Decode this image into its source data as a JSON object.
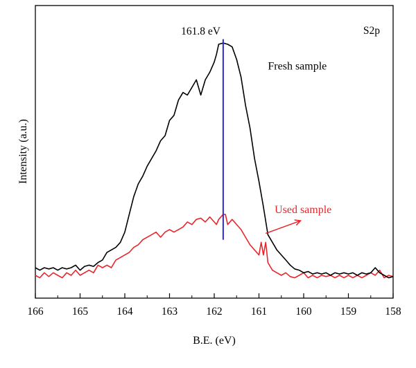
{
  "chart_data": {
    "type": "line",
    "title": "",
    "panel_label": "S2p",
    "xlabel": "B.E. (eV)",
    "ylabel": "Intensity (a.u.)",
    "xlim": [
      166,
      158
    ],
    "x_reversed": true,
    "ylim": [
      0,
      100
    ],
    "y_ticks_shown": false,
    "grid": false,
    "x_ticks": [
      166,
      165,
      164,
      163,
      162,
      161,
      160,
      159,
      158
    ],
    "x_tick_labels": [
      "166",
      "165",
      "164",
      "163",
      "162",
      "161",
      "160",
      "159",
      "158"
    ],
    "series": [
      {
        "name": "Fresh sample",
        "color": "#000000",
        "points": [
          [
            166.0,
            12.0
          ],
          [
            165.9,
            11.0
          ],
          [
            165.8,
            12.0
          ],
          [
            165.7,
            11.5
          ],
          [
            165.6,
            12.0
          ],
          [
            165.5,
            11.0
          ],
          [
            165.4,
            12.0
          ],
          [
            165.3,
            11.5
          ],
          [
            165.2,
            12.0
          ],
          [
            165.1,
            13.0
          ],
          [
            165.0,
            11.0
          ],
          [
            164.9,
            12.5
          ],
          [
            164.8,
            13.0
          ],
          [
            164.7,
            12.5
          ],
          [
            164.6,
            14.0
          ],
          [
            164.5,
            15.0
          ],
          [
            164.4,
            18.0
          ],
          [
            164.3,
            19.0
          ],
          [
            164.2,
            20.0
          ],
          [
            164.1,
            22.0
          ],
          [
            164.0,
            26.0
          ],
          [
            163.9,
            33.0
          ],
          [
            163.8,
            40.0
          ],
          [
            163.7,
            45.0
          ],
          [
            163.6,
            48.0
          ],
          [
            163.5,
            52.0
          ],
          [
            163.4,
            55.0
          ],
          [
            163.3,
            58.0
          ],
          [
            163.2,
            62.0
          ],
          [
            163.1,
            64.0
          ],
          [
            163.0,
            70.0
          ],
          [
            162.9,
            72.0
          ],
          [
            162.8,
            78.0
          ],
          [
            162.7,
            81.0
          ],
          [
            162.6,
            80.0
          ],
          [
            162.5,
            83.0
          ],
          [
            162.4,
            86.0
          ],
          [
            162.3,
            80.0
          ],
          [
            162.2,
            86.0
          ],
          [
            162.1,
            89.0
          ],
          [
            162.0,
            93.0
          ],
          [
            161.95,
            96.0
          ],
          [
            161.9,
            100.0
          ],
          [
            161.8,
            100.5
          ],
          [
            161.7,
            100.0
          ],
          [
            161.6,
            99.0
          ],
          [
            161.5,
            94.0
          ],
          [
            161.4,
            87.0
          ],
          [
            161.3,
            76.0
          ],
          [
            161.2,
            67.0
          ],
          [
            161.1,
            55.0
          ],
          [
            161.0,
            46.0
          ],
          [
            160.9,
            36.0
          ],
          [
            160.8,
            25.0
          ],
          [
            160.7,
            22.0
          ],
          [
            160.6,
            19.0
          ],
          [
            160.5,
            17.0
          ],
          [
            160.4,
            15.0
          ],
          [
            160.3,
            13.0
          ],
          [
            160.2,
            11.5
          ],
          [
            160.1,
            11.0
          ],
          [
            160.0,
            10.0
          ],
          [
            159.9,
            10.5
          ],
          [
            159.8,
            9.5
          ],
          [
            159.7,
            10.0
          ],
          [
            159.6,
            9.5
          ],
          [
            159.5,
            10.0
          ],
          [
            159.4,
            9.0
          ],
          [
            159.3,
            10.0
          ],
          [
            159.2,
            9.5
          ],
          [
            159.1,
            10.0
          ],
          [
            159.0,
            9.5
          ],
          [
            158.9,
            10.0
          ],
          [
            158.8,
            9.0
          ],
          [
            158.7,
            10.0
          ],
          [
            158.6,
            9.5
          ],
          [
            158.5,
            10.0
          ],
          [
            158.4,
            12.0
          ],
          [
            158.3,
            10.0
          ],
          [
            158.2,
            9.0
          ],
          [
            158.1,
            8.0
          ],
          [
            158.0,
            8.5
          ]
        ]
      },
      {
        "name": "Used sample",
        "color": "#e8242a",
        "points": [
          [
            166.0,
            9.0
          ],
          [
            165.9,
            8.0
          ],
          [
            165.8,
            10.0
          ],
          [
            165.7,
            8.5
          ],
          [
            165.6,
            10.0
          ],
          [
            165.5,
            9.0
          ],
          [
            165.4,
            8.0
          ],
          [
            165.3,
            10.0
          ],
          [
            165.2,
            9.0
          ],
          [
            165.1,
            11.0
          ],
          [
            165.0,
            9.0
          ],
          [
            164.9,
            10.0
          ],
          [
            164.8,
            11.0
          ],
          [
            164.7,
            10.0
          ],
          [
            164.6,
            13.0
          ],
          [
            164.5,
            12.0
          ],
          [
            164.4,
            13.0
          ],
          [
            164.3,
            12.0
          ],
          [
            164.2,
            15.0
          ],
          [
            164.1,
            16.0
          ],
          [
            164.0,
            17.0
          ],
          [
            163.9,
            18.0
          ],
          [
            163.8,
            20.0
          ],
          [
            163.7,
            21.0
          ],
          [
            163.6,
            23.0
          ],
          [
            163.5,
            24.0
          ],
          [
            163.4,
            25.0
          ],
          [
            163.3,
            26.0
          ],
          [
            163.2,
            24.0
          ],
          [
            163.1,
            26.0
          ],
          [
            163.0,
            27.0
          ],
          [
            162.9,
            26.0
          ],
          [
            162.8,
            27.0
          ],
          [
            162.7,
            28.0
          ],
          [
            162.6,
            30.0
          ],
          [
            162.5,
            29.0
          ],
          [
            162.4,
            31.0
          ],
          [
            162.3,
            31.5
          ],
          [
            162.2,
            30.0
          ],
          [
            162.1,
            32.0
          ],
          [
            162.0,
            30.0
          ],
          [
            161.95,
            29.0
          ],
          [
            161.9,
            31.0
          ],
          [
            161.8,
            33.0
          ],
          [
            161.75,
            33.0
          ],
          [
            161.7,
            29.0
          ],
          [
            161.6,
            31.0
          ],
          [
            161.5,
            29.0
          ],
          [
            161.4,
            27.0
          ],
          [
            161.3,
            24.0
          ],
          [
            161.2,
            21.0
          ],
          [
            161.1,
            19.0
          ],
          [
            161.0,
            17.0
          ],
          [
            160.95,
            22.0
          ],
          [
            160.9,
            17.0
          ],
          [
            160.85,
            22.0
          ],
          [
            160.8,
            14.0
          ],
          [
            160.7,
            11.0
          ],
          [
            160.6,
            10.0
          ],
          [
            160.5,
            9.0
          ],
          [
            160.4,
            10.0
          ],
          [
            160.3,
            8.5
          ],
          [
            160.2,
            8.0
          ],
          [
            160.1,
            9.0
          ],
          [
            160.0,
            10.0
          ],
          [
            159.9,
            8.0
          ],
          [
            159.8,
            9.0
          ],
          [
            159.7,
            8.0
          ],
          [
            159.6,
            9.0
          ],
          [
            159.5,
            8.5
          ],
          [
            159.4,
            9.0
          ],
          [
            159.3,
            8.0
          ],
          [
            159.2,
            9.0
          ],
          [
            159.1,
            8.0
          ],
          [
            159.0,
            9.0
          ],
          [
            158.9,
            8.0
          ],
          [
            158.8,
            9.0
          ],
          [
            158.7,
            8.0
          ],
          [
            158.6,
            9.0
          ],
          [
            158.5,
            10.0
          ],
          [
            158.4,
            9.0
          ],
          [
            158.3,
            11.0
          ],
          [
            158.2,
            8.0
          ],
          [
            158.1,
            9.0
          ],
          [
            158.0,
            8.5
          ]
        ]
      }
    ],
    "reference_line": {
      "x": 161.8,
      "label": "161.8 eV",
      "color": "#2e2bd6",
      "y_from": 23,
      "y_to": 102
    },
    "annotations": [
      {
        "text": "Fresh sample",
        "x": 160.8,
        "y": 90,
        "color": "#000000"
      },
      {
        "text": "Used sample",
        "x": 160.65,
        "y": 33.5,
        "color": "#e8242a"
      }
    ],
    "arrow": {
      "from": [
        160.85,
        25.5
      ],
      "to": [
        160.07,
        30.5
      ],
      "color": "#e8242a"
    }
  }
}
